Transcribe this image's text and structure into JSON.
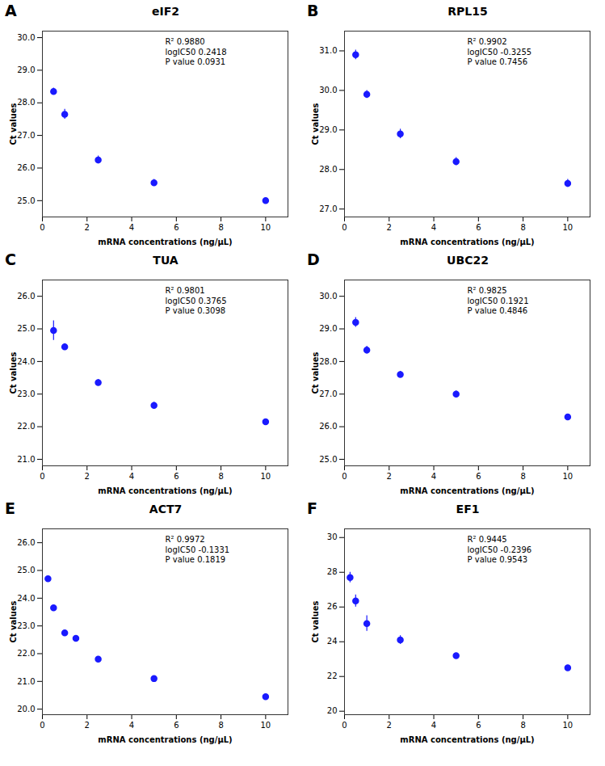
{
  "chart_data": [
    {
      "type": "scatter",
      "title": "eIF2",
      "annotations": [
        "A",
        "R² 0.9880",
        "logIC50 0.2418",
        "P value 0.0931"
      ],
      "x": [
        0.5,
        1.0,
        2.5,
        5.0,
        10.0
      ],
      "values": [
        28.35,
        27.65,
        26.25,
        25.55,
        25.0
      ],
      "errors": [
        0.1,
        0.15,
        0.12,
        0.1,
        0.08
      ],
      "xlabel": "mRNA concentrations (ng/μL)",
      "ylabel": "Ct values",
      "xlim": [
        0,
        11
      ],
      "xticks": [
        0,
        2,
        4,
        6,
        8,
        10
      ],
      "ylim": [
        24.5,
        30.2
      ],
      "yticks": [
        25,
        26,
        27,
        28,
        29,
        30
      ],
      "color": "#1A1AFF",
      "marker": "circle",
      "grid": false
    },
    {
      "type": "scatter",
      "title": "RPL15",
      "annotations": [
        "B",
        "R² 0.9902",
        "logIC50 -0.3255",
        "P value 0.7456"
      ],
      "x": [
        0.5,
        1.0,
        2.5,
        5.0,
        10.0
      ],
      "values": [
        30.9,
        29.9,
        28.9,
        28.2,
        27.65
      ],
      "errors": [
        0.12,
        0.1,
        0.12,
        0.1,
        0.1
      ],
      "xlabel": "mRNA concentrations (ng/μL)",
      "ylabel": "Ct values",
      "xlim": [
        0,
        11
      ],
      "xticks": [
        0,
        2,
        4,
        6,
        8,
        10
      ],
      "ylim": [
        26.8,
        31.5
      ],
      "yticks": [
        27,
        28,
        29,
        30,
        31
      ],
      "color": "#1A1AFF",
      "marker": "circle",
      "grid": false
    },
    {
      "type": "scatter",
      "title": "TUA",
      "annotations": [
        "C",
        "R² 0.9801",
        "logIC50 0.3765",
        "P value 0.3098"
      ],
      "x": [
        0.5,
        1.0,
        2.5,
        5.0,
        10.0
      ],
      "values": [
        24.95,
        24.45,
        23.35,
        22.65,
        22.15
      ],
      "errors": [
        0.3,
        0.1,
        0.1,
        0.1,
        0.08
      ],
      "xlabel": "mRNA concentrations (ng/μL)",
      "ylabel": "Ct values",
      "xlim": [
        0,
        11
      ],
      "xticks": [
        0,
        2,
        4,
        6,
        8,
        10
      ],
      "ylim": [
        20.8,
        26.5
      ],
      "yticks": [
        21,
        22,
        23,
        24,
        25,
        26
      ],
      "color": "#1A1AFF",
      "marker": "circle",
      "grid": false
    },
    {
      "type": "scatter",
      "title": "UBC22",
      "annotations": [
        "D",
        "R² 0.9825",
        "logIC50 0.1921",
        "P value 0.4846"
      ],
      "x": [
        0.5,
        1.0,
        2.5,
        5.0,
        10.0
      ],
      "values": [
        29.2,
        28.35,
        27.6,
        27.0,
        26.3
      ],
      "errors": [
        0.15,
        0.12,
        0.1,
        0.1,
        0.08
      ],
      "xlabel": "mRNA concentrations (ng/μL)",
      "ylabel": "Ct values",
      "xlim": [
        0,
        11
      ],
      "xticks": [
        0,
        2,
        4,
        6,
        8,
        10
      ],
      "ylim": [
        24.8,
        30.5
      ],
      "yticks": [
        25,
        26,
        27,
        28,
        29,
        30
      ],
      "color": "#1A1AFF",
      "marker": "circle",
      "grid": false
    },
    {
      "type": "scatter",
      "title": "ACT7",
      "annotations": [
        "E",
        "R² 0.9972",
        "logIC50 -0.1331",
        "P value 0.1819"
      ],
      "x": [
        0.25,
        0.5,
        1.0,
        1.5,
        2.5,
        5.0,
        10.0
      ],
      "values": [
        24.7,
        23.65,
        22.75,
        22.55,
        21.8,
        21.1,
        20.45
      ],
      "errors": [
        0.08,
        0.1,
        0.1,
        0.1,
        0.1,
        0.1,
        0.08
      ],
      "xlabel": "mRNA concentrations (ng/μL)",
      "ylabel": "Ct values",
      "xlim": [
        0,
        11
      ],
      "xticks": [
        0,
        2,
        4,
        6,
        8,
        10
      ],
      "ylim": [
        19.8,
        26.5
      ],
      "yticks": [
        20,
        21,
        22,
        23,
        24,
        25,
        26
      ],
      "color": "#1A1AFF",
      "marker": "circle",
      "grid": false
    },
    {
      "type": "scatter",
      "title": "EF1",
      "annotations": [
        "F",
        "R² 0.9445",
        "logIC50 -0.2396",
        "P value 0.9543"
      ],
      "x": [
        0.25,
        0.5,
        1.0,
        2.5,
        5.0,
        10.0
      ],
      "values": [
        27.7,
        26.35,
        25.05,
        24.1,
        23.2,
        22.5
      ],
      "errors": [
        0.3,
        0.35,
        0.45,
        0.25,
        0.15,
        0.15
      ],
      "xlabel": "mRNA concentrations (ng/μL)",
      "ylabel": "Ct values",
      "xlim": [
        0,
        11
      ],
      "xticks": [
        0,
        2,
        4,
        6,
        8,
        10
      ],
      "ylim": [
        19.8,
        30.5
      ],
      "yticks": [
        20,
        22,
        24,
        26,
        28,
        30
      ],
      "color": "#1A1AFF",
      "marker": "circle",
      "grid": false
    }
  ]
}
